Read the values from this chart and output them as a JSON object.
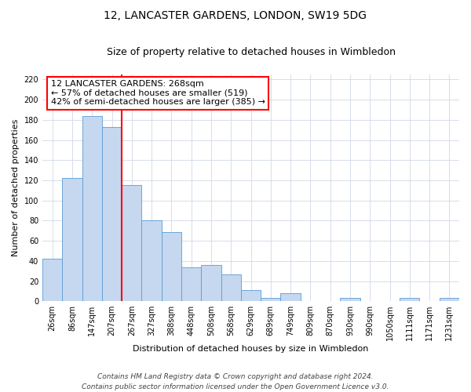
{
  "title": "12, LANCASTER GARDENS, LONDON, SW19 5DG",
  "subtitle": "Size of property relative to detached houses in Wimbledon",
  "xlabel": "Distribution of detached houses by size in Wimbledon",
  "ylabel": "Number of detached properties",
  "bin_labels": [
    "26sqm",
    "86sqm",
    "147sqm",
    "207sqm",
    "267sqm",
    "327sqm",
    "388sqm",
    "448sqm",
    "508sqm",
    "568sqm",
    "629sqm",
    "689sqm",
    "749sqm",
    "809sqm",
    "870sqm",
    "930sqm",
    "990sqm",
    "1050sqm",
    "1111sqm",
    "1171sqm",
    "1231sqm"
  ],
  "bar_heights": [
    42,
    122,
    184,
    173,
    115,
    80,
    69,
    34,
    36,
    27,
    11,
    3,
    8,
    0,
    0,
    3,
    0,
    0,
    3,
    0,
    3
  ],
  "bar_color": "#c5d8f0",
  "bar_edge_color": "#5b9bd5",
  "property_line_color": "red",
  "annotation_text": "12 LANCASTER GARDENS: 268sqm\n← 57% of detached houses are smaller (519)\n42% of semi-detached houses are larger (385) →",
  "annotation_box_color": "white",
  "annotation_box_edge_color": "red",
  "ylim": [
    0,
    225
  ],
  "yticks": [
    0,
    20,
    40,
    60,
    80,
    100,
    120,
    140,
    160,
    180,
    200,
    220
  ],
  "grid_color": "#d0d8e8",
  "footer": "Contains HM Land Registry data © Crown copyright and database right 2024.\nContains public sector information licensed under the Open Government Licence v3.0.",
  "title_fontsize": 10,
  "subtitle_fontsize": 9,
  "xlabel_fontsize": 8,
  "ylabel_fontsize": 8,
  "tick_fontsize": 7,
  "annotation_fontsize": 8,
  "footer_fontsize": 6.5
}
